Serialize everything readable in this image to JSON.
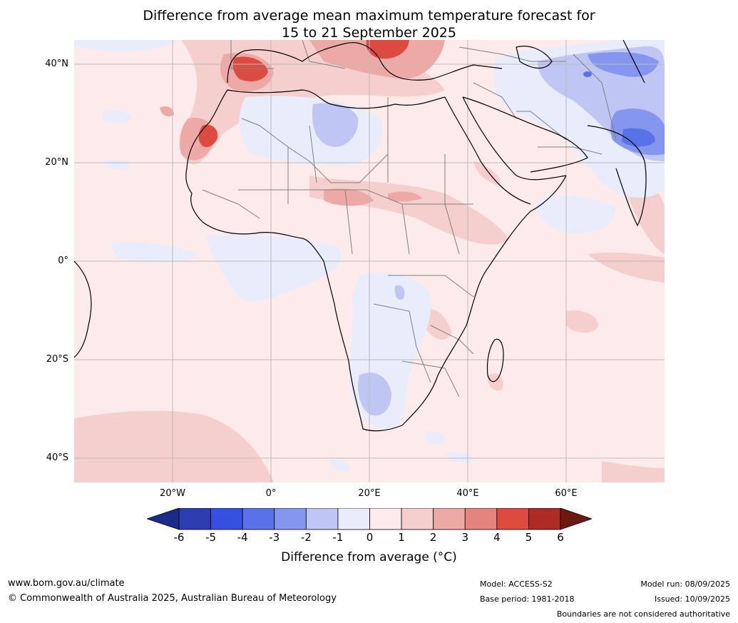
{
  "title": {
    "line1": "Difference from average mean maximum temperature forecast for",
    "line2": "15 to 21 September 2025"
  },
  "map": {
    "lat_labels": [
      "40°N",
      "20°N",
      "0°",
      "20°S",
      "40°S"
    ],
    "lon_labels": [
      "20°W",
      "0°",
      "20°E",
      "40°E",
      "60°E"
    ],
    "background_color": "#fcebea",
    "ocean_note": "Africa and surrounding region"
  },
  "colorbar": {
    "ticks": [
      "-6",
      "-5",
      "-4",
      "-3",
      "-2",
      "-1",
      "0",
      "1",
      "2",
      "3",
      "4",
      "5",
      "6"
    ],
    "colors": [
      "#1b2b8a",
      "#2b3db0",
      "#3550e0",
      "#5a72e8",
      "#8596ee",
      "#bfc6f4",
      "#e8ecfb",
      "#fcebea",
      "#f5cfcd",
      "#eda9a6",
      "#e5837e",
      "#dc4a40",
      "#ad2a25",
      "#6e1812"
    ],
    "label": "Difference from average (°C)"
  },
  "footer": {
    "website": "www.bom.gov.au/climate",
    "copyright": "© Commonwealth of Australia 2025, Australian Bureau of Meteorology",
    "model": "Model: ACCESS-S2",
    "base_period": "Base period: 1981-2018",
    "model_run": "Model run: 08/09/2025",
    "issued": "Issued: 10/09/2025",
    "disclaimer": "Boundaries are not considered authoritative"
  }
}
